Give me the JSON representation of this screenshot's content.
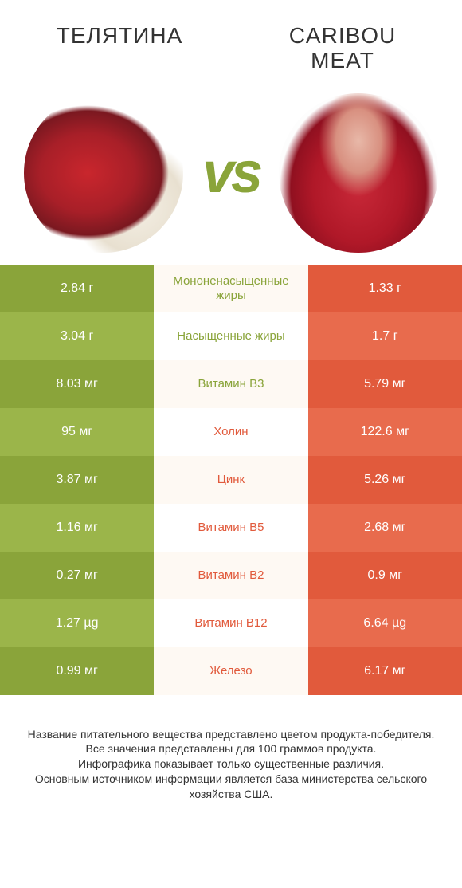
{
  "titles": {
    "left": "ТЕЛЯТИНА",
    "right": "CARIBOU MEAT"
  },
  "vs_label": "vs",
  "colors": {
    "left_product": "#8aa43a",
    "right_product": "#e15a3c",
    "left_alt": "#9bb54a",
    "right_alt": "#e86b4d",
    "mid_bg_a": "#fef9f3",
    "mid_bg_b": "#ffffff"
  },
  "rows": [
    {
      "left": "2.84 г",
      "mid": "Мононенасыщенные жиры",
      "right": "1.33 г",
      "winner": "left"
    },
    {
      "left": "3.04 г",
      "mid": "Насыщенные жиры",
      "right": "1.7 г",
      "winner": "left"
    },
    {
      "left": "8.03 мг",
      "mid": "Витамин B3",
      "right": "5.79 мг",
      "winner": "left"
    },
    {
      "left": "95 мг",
      "mid": "Холин",
      "right": "122.6 мг",
      "winner": "right"
    },
    {
      "left": "3.87 мг",
      "mid": "Цинк",
      "right": "5.26 мг",
      "winner": "right"
    },
    {
      "left": "1.16 мг",
      "mid": "Витамин B5",
      "right": "2.68 мг",
      "winner": "right"
    },
    {
      "left": "0.27 мг",
      "mid": "Витамин B2",
      "right": "0.9 мг",
      "winner": "right"
    },
    {
      "left": "1.27 µg",
      "mid": "Витамин B12",
      "right": "6.64 µg",
      "winner": "right"
    },
    {
      "left": "0.99 мг",
      "mid": "Железо",
      "right": "6.17 мг",
      "winner": "right"
    }
  ],
  "footer_lines": [
    "Название питательного вещества представлено цветом продукта-победителя.",
    "Все значения представлены для 100 граммов продукта.",
    "Инфографика показывает только существенные различия.",
    "Основным источником информации является база министерства сельского хозяйства США."
  ]
}
